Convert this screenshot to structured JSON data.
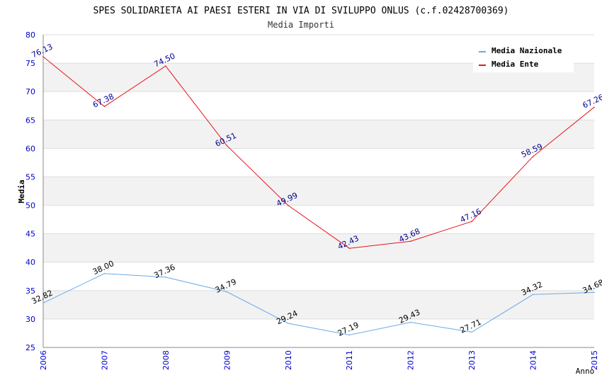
{
  "chart_data": {
    "type": "line",
    "title": "SPES SOLIDARIETA AI PAESI ESTERI IN VIA DI SVILUPPO ONLUS (c.f.02428700369)",
    "subtitle": "Media Importi",
    "xlabel": "Anno",
    "ylabel": "Media",
    "ylim": [
      25,
      80
    ],
    "ytick_step": 5,
    "grid": true,
    "legend_position": "top-right",
    "categories": [
      "2006",
      "2007",
      "2008",
      "2009",
      "2010",
      "2011",
      "2012",
      "2013",
      "2014",
      "2015"
    ],
    "series": [
      {
        "name": "Media Nazionale",
        "color": "#6aaae8",
        "label_color": "#000000",
        "values": [
          32.82,
          38.0,
          37.36,
          34.79,
          29.24,
          27.19,
          29.43,
          27.71,
          34.32,
          34.68
        ],
        "labels": [
          "32.82",
          "38.00",
          "37.36",
          "34.79",
          "29.24",
          "27.19",
          "29.43",
          "27.71",
          "34.32",
          "34.68"
        ]
      },
      {
        "name": "Media Ente",
        "color": "#e8141e",
        "label_color": "#00008b",
        "values": [
          76.13,
          67.38,
          74.5,
          60.51,
          49.99,
          42.43,
          43.68,
          47.16,
          58.59,
          67.26
        ],
        "labels": [
          "76.13",
          "67.38",
          "74.50",
          "60.51",
          "49.99",
          "42.43",
          "43.68",
          "47.16",
          "58.59",
          "67.26"
        ]
      }
    ],
    "colors": {
      "axis_labels": "#0000cc",
      "band": "#f2f2f2",
      "grid": "#dddddd"
    }
  }
}
